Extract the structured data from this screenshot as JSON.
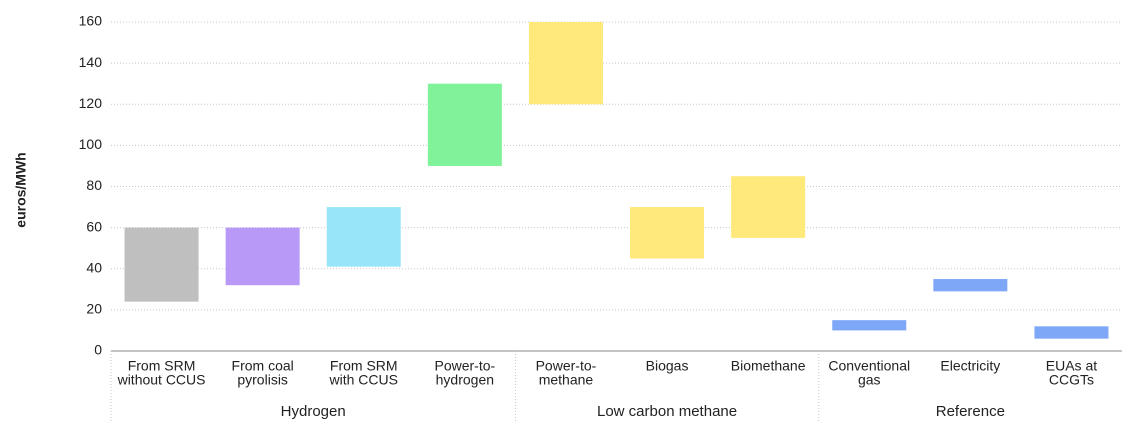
{
  "chart_data": {
    "type": "floating_bar",
    "y_label": "euros/MWh",
    "ylim": [
      0,
      160
    ],
    "yticks": [
      0,
      20,
      40,
      60,
      80,
      100,
      120,
      140,
      160
    ],
    "grid": true,
    "groups": [
      {
        "name": "Hydrogen",
        "categories": [
          [
            "From SRM",
            "without CCUS"
          ],
          [
            "From coal",
            "pyrolisis"
          ],
          [
            "From SRM",
            "with CCUS"
          ],
          [
            "Power-to-",
            "hydrogen"
          ]
        ],
        "low": [
          24,
          32,
          41,
          90
        ],
        "high": [
          60,
          60,
          70,
          130
        ],
        "colors": [
          "#bfbfbf",
          "#b999f7",
          "#99e5f8",
          "#80f29a"
        ]
      },
      {
        "name": "Low carbon methane",
        "categories": [
          [
            "Power-to-",
            "methane"
          ],
          [
            "Biogas"
          ],
          [
            "Biomethane"
          ]
        ],
        "low": [
          120,
          45,
          55
        ],
        "high": [
          160,
          70,
          85
        ],
        "colors": [
          "#ffe97a",
          "#ffe97a",
          "#ffe97a"
        ]
      },
      {
        "name": "Reference",
        "categories": [
          [
            "Conventional",
            "gas"
          ],
          [
            "Electricity"
          ],
          [
            "EUAs at",
            "CCGTs"
          ]
        ],
        "low": [
          10,
          29,
          6
        ],
        "high": [
          15,
          35,
          12
        ],
        "colors": [
          "#7ea8f7",
          "#7ea8f7",
          "#7ea8f7"
        ]
      }
    ]
  }
}
